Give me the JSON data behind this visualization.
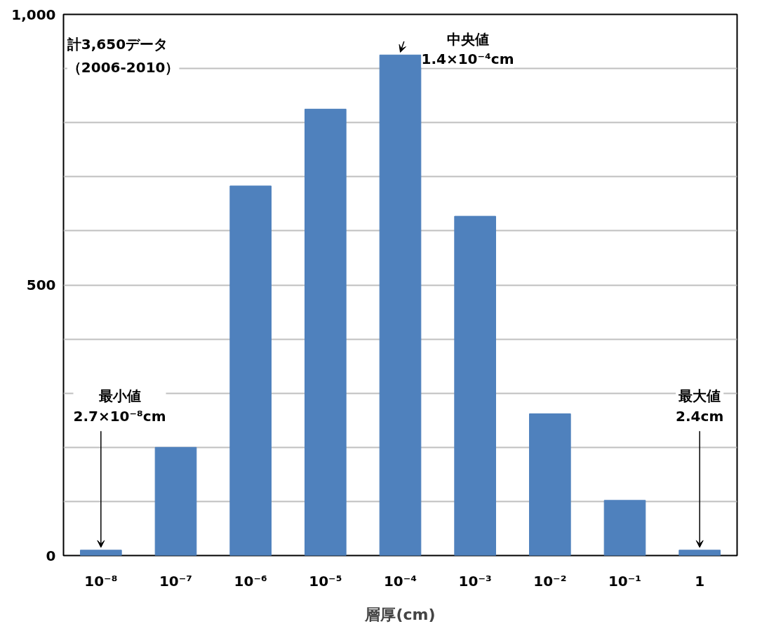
{
  "chart_data": {
    "type": "bar",
    "xlabel": "層厚(cm)",
    "categories": [
      "10⁻⁸",
      "10⁻⁷",
      "10⁻⁶",
      "10⁻⁵",
      "10⁻⁴",
      "10⁻³",
      "10⁻²",
      "10⁻¹",
      "1"
    ],
    "values": [
      10,
      200,
      683,
      825,
      925,
      627,
      262,
      102,
      10
    ],
    "color": "#4f81bd",
    "ylim": [
      0,
      1000
    ],
    "yticks": [
      0,
      {
        "value": 100,
        "label": null
      },
      {
        "value": 200,
        "label": null
      },
      {
        "value": 300,
        "label": null
      },
      {
        "value": 400,
        "label": null
      },
      500,
      {
        "value": 600,
        "label": null
      },
      {
        "value": 700,
        "label": null
      },
      {
        "value": 800,
        "label": null
      },
      {
        "value": 900,
        "label": null
      },
      {
        "value": 1000,
        "label": "1,000"
      }
    ],
    "grid": "y",
    "annotations": [
      "計3,650データ",
      "（2006-2010）",
      {
        "text": "中央値\n1.4×10⁻⁴cm",
        "x": "10⁻⁴",
        "y": 925
      },
      {
        "text": "最小値\n2.7×10⁻⁸cm",
        "x": "10⁻⁸",
        "y": 10
      },
      {
        "text": "最大値\n2.4cm",
        "x": "1",
        "y": 10
      }
    ]
  }
}
